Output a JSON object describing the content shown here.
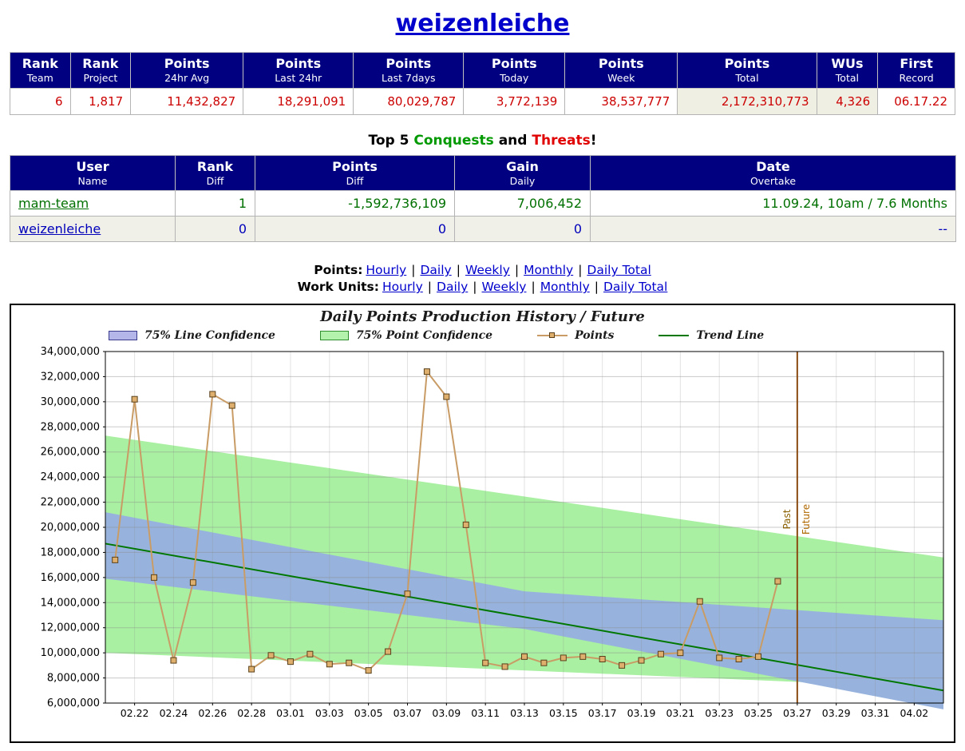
{
  "title": "weizenleiche",
  "stats_table": {
    "columns": [
      {
        "label": "Rank",
        "sub": "Team"
      },
      {
        "label": "Rank",
        "sub": "Project"
      },
      {
        "label": "Points",
        "sub": "24hr Avg"
      },
      {
        "label": "Points",
        "sub": "Last 24hr"
      },
      {
        "label": "Points",
        "sub": "Last 7days"
      },
      {
        "label": "Points",
        "sub": "Today"
      },
      {
        "label": "Points",
        "sub": "Week"
      },
      {
        "label": "Points",
        "sub": "Total"
      },
      {
        "label": "WUs",
        "sub": "Total"
      },
      {
        "label": "First",
        "sub": "Record"
      }
    ],
    "values": [
      "6",
      "1,817",
      "11,432,827",
      "18,291,091",
      "80,029,787",
      "3,772,139",
      "38,537,777",
      "2,172,310,773",
      "4,326",
      "06.17.22"
    ]
  },
  "tops_heading": {
    "prefix": "Top 5 ",
    "conquests": "Conquests",
    "and": " and ",
    "threats": "Threats",
    "bang": "!"
  },
  "threats_table": {
    "columns": [
      {
        "label": "User",
        "sub": "Name"
      },
      {
        "label": "Rank",
        "sub": "Diff"
      },
      {
        "label": "Points",
        "sub": "Diff"
      },
      {
        "label": "Gain",
        "sub": "Daily"
      },
      {
        "label": "Date",
        "sub": "Overtake"
      }
    ],
    "rows": [
      {
        "user": "mam-team",
        "rank_diff": "1",
        "points_diff": "-1,592,736,109",
        "gain_daily": "7,006,452",
        "date_overtake": "11.09.24, 10am / 7.6 Months"
      },
      {
        "user": "weizenleiche",
        "rank_diff": "0",
        "points_diff": "0",
        "gain_daily": "0",
        "date_overtake": "--"
      }
    ]
  },
  "links": {
    "separator": "|",
    "rows": [
      {
        "label": "Points:",
        "options": [
          "Hourly",
          "Daily",
          "Weekly",
          "Monthly",
          "Daily Total"
        ]
      },
      {
        "label": "Work Units:",
        "options": [
          "Hourly",
          "Daily",
          "Weekly",
          "Monthly",
          "Daily Total"
        ]
      }
    ]
  },
  "chart_data": {
    "type": "line",
    "title": "Daily Points Production History / Future",
    "legend": [
      {
        "label": "75% Line Confidence",
        "type": "band",
        "color": "#b4b6ea",
        "border": "#3b3b8e"
      },
      {
        "label": "75% Point Confidence",
        "type": "band",
        "color": "#b2f2ac",
        "border": "#2e8e2e"
      },
      {
        "label": "Points",
        "type": "line-marker",
        "color": "#c99c66",
        "marker_fill": "#dfaf6e",
        "marker_border": "#59401a"
      },
      {
        "label": "Trend Line",
        "type": "line",
        "color": "#007700"
      }
    ],
    "ylim": [
      6000000,
      34000000
    ],
    "ytick_step": 2000000,
    "x_domain_days": [
      -0.5,
      42.5
    ],
    "xticks": [
      {
        "d": 1,
        "label": "02.22"
      },
      {
        "d": 3,
        "label": "02.24"
      },
      {
        "d": 5,
        "label": "02.26"
      },
      {
        "d": 7,
        "label": "02.28"
      },
      {
        "d": 9,
        "label": "03.01"
      },
      {
        "d": 11,
        "label": "03.03"
      },
      {
        "d": 13,
        "label": "03.05"
      },
      {
        "d": 15,
        "label": "03.07"
      },
      {
        "d": 17,
        "label": "03.09"
      },
      {
        "d": 19,
        "label": "03.11"
      },
      {
        "d": 21,
        "label": "03.13"
      },
      {
        "d": 23,
        "label": "03.15"
      },
      {
        "d": 25,
        "label": "03.17"
      },
      {
        "d": 27,
        "label": "03.19"
      },
      {
        "d": 29,
        "label": "03.21"
      },
      {
        "d": 31,
        "label": "03.23"
      },
      {
        "d": 33,
        "label": "03.25"
      },
      {
        "d": 35,
        "label": "03.27"
      },
      {
        "d": 37,
        "label": "03.29"
      },
      {
        "d": 39,
        "label": "03.31"
      },
      {
        "d": 41,
        "label": "04.02"
      }
    ],
    "bands": {
      "point_confidence": {
        "color": "#a9f0a2",
        "samples": [
          {
            "d": -0.5,
            "upper": 27300000,
            "lower": 10000000
          },
          {
            "d": 42.5,
            "upper": 17600000,
            "lower": 7200000
          }
        ]
      },
      "line_confidence": {
        "color": "#97b3dd",
        "samples": [
          {
            "d": -0.5,
            "upper": 21200000,
            "lower": 15900000
          },
          {
            "d": 21,
            "upper": 14900000,
            "lower": 11900000
          },
          {
            "d": 42.5,
            "upper": 12600000,
            "lower": 5500000
          }
        ]
      }
    },
    "trend": {
      "start": 18700000,
      "end": 7000000,
      "color": "#007700"
    },
    "divider": {
      "d": 35,
      "past_label": "Past",
      "future_label": "Future",
      "color": "#8a4a10",
      "past_color": "#8a5f00",
      "future_color": "#b06800"
    },
    "points": {
      "color": "#c99c66",
      "marker_fill": "#dfaf6e",
      "marker_border": "#59401a",
      "data": [
        {
          "d": 0,
          "date": "02.21",
          "v": 17400000
        },
        {
          "d": 1,
          "date": "02.22",
          "v": 30200000
        },
        {
          "d": 2,
          "date": "02.23",
          "v": 16000000
        },
        {
          "d": 3,
          "date": "02.24",
          "v": 9400000
        },
        {
          "d": 4,
          "date": "02.25",
          "v": 15600000
        },
        {
          "d": 5,
          "date": "02.26",
          "v": 30600000
        },
        {
          "d": 6,
          "date": "02.27",
          "v": 29700000
        },
        {
          "d": 7,
          "date": "02.28",
          "v": 8700000
        },
        {
          "d": 8,
          "date": "02.29",
          "v": 9800000
        },
        {
          "d": 9,
          "date": "03.01",
          "v": 9300000
        },
        {
          "d": 10,
          "date": "03.02",
          "v": 9900000
        },
        {
          "d": 11,
          "date": "03.03",
          "v": 9100000
        },
        {
          "d": 12,
          "date": "03.04",
          "v": 9200000
        },
        {
          "d": 13,
          "date": "03.05",
          "v": 8600000
        },
        {
          "d": 14,
          "date": "03.06",
          "v": 10100000
        },
        {
          "d": 15,
          "date": "03.07",
          "v": 14700000
        },
        {
          "d": 16,
          "date": "03.08",
          "v": 32400000
        },
        {
          "d": 17,
          "date": "03.09",
          "v": 30400000
        },
        {
          "d": 18,
          "date": "03.10",
          "v": 20200000
        },
        {
          "d": 19,
          "date": "03.11",
          "v": 9200000
        },
        {
          "d": 20,
          "date": "03.12",
          "v": 8900000
        },
        {
          "d": 21,
          "date": "03.13",
          "v": 9700000
        },
        {
          "d": 22,
          "date": "03.14",
          "v": 9200000
        },
        {
          "d": 23,
          "date": "03.15",
          "v": 9600000
        },
        {
          "d": 24,
          "date": "03.16",
          "v": 9700000
        },
        {
          "d": 25,
          "date": "03.17",
          "v": 9500000
        },
        {
          "d": 26,
          "date": "03.18",
          "v": 9000000
        },
        {
          "d": 27,
          "date": "03.19",
          "v": 9400000
        },
        {
          "d": 28,
          "date": "03.20",
          "v": 9900000
        },
        {
          "d": 29,
          "date": "03.21",
          "v": 10000000
        },
        {
          "d": 30,
          "date": "03.22",
          "v": 14100000
        },
        {
          "d": 31,
          "date": "03.23",
          "v": 9600000
        },
        {
          "d": 32,
          "date": "03.24",
          "v": 9500000
        },
        {
          "d": 33,
          "date": "03.25",
          "v": 9700000
        },
        {
          "d": 34,
          "date": "03.26",
          "v": 15700000
        }
      ]
    }
  }
}
